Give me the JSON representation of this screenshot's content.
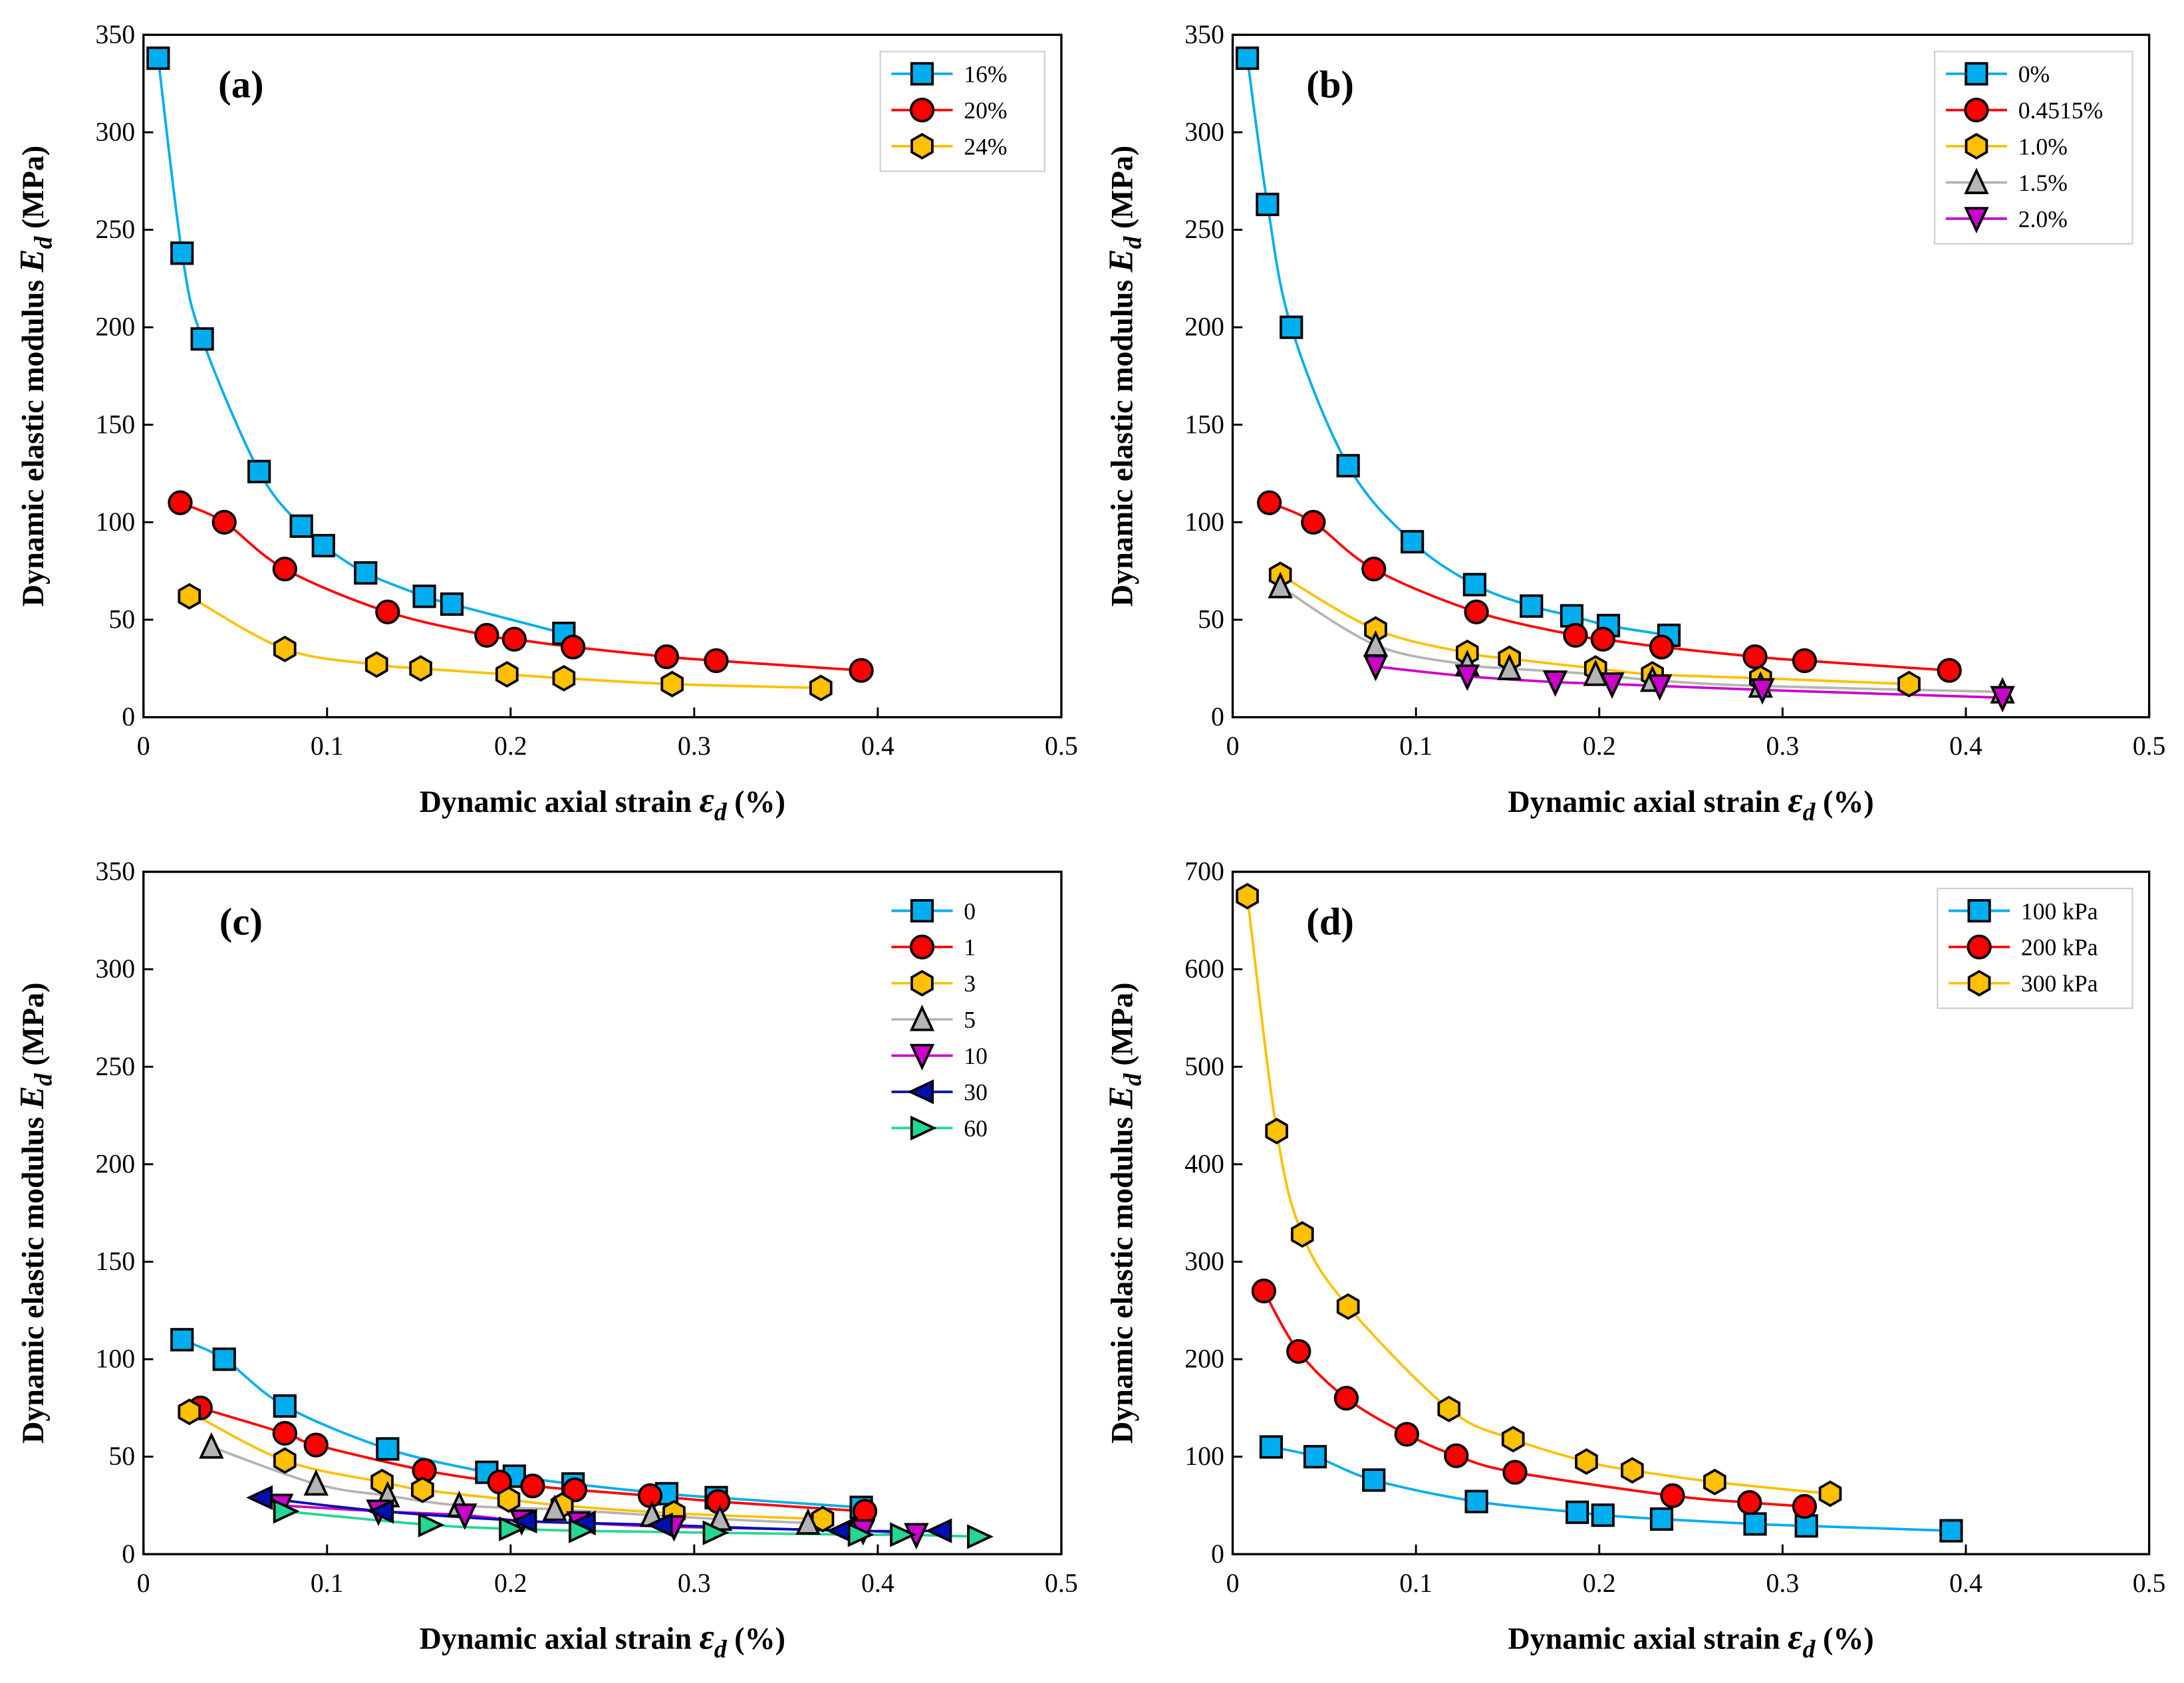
{
  "colors": {
    "blue": "#00AEEF",
    "red": "#FF0000",
    "gold": "#FFC000",
    "gray": "#B4B4B4",
    "magenta": "#CC00CC",
    "navy": "#0010B0",
    "green": "#22D892"
  },
  "chart_data": [
    {
      "type": "scatter",
      "panel_label": "(a)",
      "xlabel": "Dynamic axial strain",
      "xlabel_sym": "ε",
      "xlabel_sub": "d",
      "xlabel_unit": "(%)",
      "ylabel": "Dynamic elastic modulus",
      "ylabel_sym": "E",
      "ylabel_sub": "d",
      "ylabel_unit": "(MPa)",
      "xlim": [
        0,
        0.5
      ],
      "ylim": [
        0,
        350
      ],
      "xticks": [
        0,
        0.1,
        0.2,
        0.3,
        0.4,
        0.5
      ],
      "xtick_labels": [
        "0",
        "0.1",
        "0.2",
        "0.3",
        "0.4",
        "0.5"
      ],
      "yticks": [
        0,
        50,
        100,
        150,
        200,
        250,
        300,
        350
      ],
      "ytick_labels": [
        "0",
        "50",
        "100",
        "150",
        "200",
        "250",
        "300",
        "350"
      ],
      "legend": "top-right",
      "legend_frame": true,
      "series": [
        {
          "name": "16%",
          "marker": "square",
          "color": "blue",
          "x": [
            0.008,
            0.021,
            0.032,
            0.063,
            0.086,
            0.098,
            0.121,
            0.153,
            0.168,
            0.229
          ],
          "y": [
            338,
            238,
            194,
            126,
            98,
            88,
            74,
            62,
            58,
            43
          ]
        },
        {
          "name": "20%",
          "marker": "circle",
          "color": "red",
          "x": [
            0.02,
            0.044,
            0.077,
            0.133,
            0.187,
            0.202,
            0.234,
            0.285,
            0.312,
            0.391
          ],
          "y": [
            110,
            100,
            76,
            54,
            42,
            40,
            36,
            31,
            29,
            24
          ]
        },
        {
          "name": "24%",
          "marker": "hexagon",
          "color": "gold",
          "x": [
            0.025,
            0.077,
            0.127,
            0.151,
            0.198,
            0.229,
            0.288,
            0.369
          ],
          "y": [
            62,
            35,
            27,
            25,
            22,
            20,
            17,
            15
          ]
        }
      ]
    },
    {
      "type": "scatter",
      "panel_label": "(b)",
      "xlabel": "Dynamic axial strain",
      "xlabel_sym": "ε",
      "xlabel_sub": "d",
      "xlabel_unit": "(%)",
      "ylabel": "Dynamic elastic modulus",
      "ylabel_sym": "E",
      "ylabel_sub": "d",
      "ylabel_unit": "(MPa)",
      "xlim": [
        0,
        0.5
      ],
      "ylim": [
        0,
        350
      ],
      "xticks": [
        0,
        0.1,
        0.2,
        0.3,
        0.4,
        0.5
      ],
      "xtick_labels": [
        "0",
        "0.1",
        "0.2",
        "0.3",
        "0.4",
        "0.5"
      ],
      "yticks": [
        0,
        50,
        100,
        150,
        200,
        250,
        300,
        350
      ],
      "ytick_labels": [
        "0",
        "50",
        "100",
        "150",
        "200",
        "250",
        "300",
        "350"
      ],
      "legend": "top-right",
      "legend_frame": true,
      "series": [
        {
          "name": "0%",
          "marker": "square",
          "color": "blue",
          "x": [
            0.008,
            0.019,
            0.032,
            0.063,
            0.098,
            0.132,
            0.163,
            0.185,
            0.205,
            0.238
          ],
          "y": [
            338,
            263,
            200,
            129,
            90,
            68,
            57,
            52,
            47,
            42
          ]
        },
        {
          "name": "0.4515%",
          "marker": "circle",
          "color": "red",
          "x": [
            0.02,
            0.044,
            0.077,
            0.133,
            0.187,
            0.202,
            0.234,
            0.285,
            0.312,
            0.391
          ],
          "y": [
            110,
            100,
            76,
            54,
            42,
            40,
            36,
            31,
            29,
            24
          ]
        },
        {
          "name": "1.0%",
          "marker": "hexagon",
          "color": "gold",
          "x": [
            0.026,
            0.078,
            0.128,
            0.151,
            0.198,
            0.229,
            0.288,
            0.369
          ],
          "y": [
            73,
            45,
            33,
            30,
            25,
            22,
            20,
            17
          ]
        },
        {
          "name": "1.5%",
          "marker": "triangle-up",
          "color": "gray",
          "x": [
            0.026,
            0.078,
            0.128,
            0.151,
            0.198,
            0.229,
            0.288,
            0.42
          ],
          "y": [
            67,
            37,
            27,
            25,
            22,
            19,
            16,
            13
          ]
        },
        {
          "name": "2.0%",
          "marker": "triangle-down",
          "color": "magenta",
          "x": [
            0.078,
            0.128,
            0.176,
            0.207,
            0.233,
            0.289,
            0.42
          ],
          "y": [
            26,
            21,
            18,
            17,
            16,
            14,
            10
          ]
        }
      ]
    },
    {
      "type": "scatter",
      "panel_label": "(c)",
      "xlabel": "Dynamic axial strain",
      "xlabel_sym": "ε",
      "xlabel_sub": "d",
      "xlabel_unit": "(%)",
      "ylabel": "Dynamic elastic modulus",
      "ylabel_sym": "E",
      "ylabel_sub": "d",
      "ylabel_unit": "(MPa)",
      "xlim": [
        0,
        0.5
      ],
      "ylim": [
        0,
        350
      ],
      "xticks": [
        0,
        0.1,
        0.2,
        0.3,
        0.4,
        0.5
      ],
      "xtick_labels": [
        "0",
        "0.1",
        "0.2",
        "0.3",
        "0.4",
        "0.5"
      ],
      "yticks": [
        0,
        50,
        100,
        150,
        200,
        250,
        300,
        350
      ],
      "ytick_labels": [
        "0",
        "50",
        "100",
        "150",
        "200",
        "250",
        "300",
        "350"
      ],
      "legend": "top-right",
      "legend_frame": false,
      "series": [
        {
          "name": "0",
          "marker": "square",
          "color": "blue",
          "x": [
            0.021,
            0.044,
            0.077,
            0.133,
            0.187,
            0.202,
            0.234,
            0.285,
            0.312,
            0.391
          ],
          "y": [
            110,
            100,
            76,
            54,
            42,
            40,
            36,
            31,
            29,
            24
          ]
        },
        {
          "name": "1",
          "marker": "circle",
          "color": "red",
          "x": [
            0.031,
            0.077,
            0.094,
            0.153,
            0.194,
            0.212,
            0.235,
            0.276,
            0.313,
            0.393
          ],
          "y": [
            75,
            62,
            56,
            43,
            37,
            35,
            33,
            30,
            27,
            22
          ]
        },
        {
          "name": "3",
          "marker": "hexagon",
          "color": "gold",
          "x": [
            0.025,
            0.077,
            0.13,
            0.152,
            0.199,
            0.228,
            0.289,
            0.37
          ],
          "y": [
            73,
            48,
            37,
            33,
            28,
            25,
            21,
            18
          ]
        },
        {
          "name": "5",
          "marker": "triangle-up",
          "color": "gray",
          "x": [
            0.037,
            0.094,
            0.133,
            0.172,
            0.224,
            0.277,
            0.314,
            0.362
          ],
          "y": [
            55,
            36,
            30,
            25,
            23,
            20,
            18,
            16
          ]
        },
        {
          "name": "10",
          "marker": "triangle-down",
          "color": "magenta",
          "x": [
            0.075,
            0.128,
            0.175,
            0.206,
            0.237,
            0.289,
            0.392,
            0.421
          ],
          "y": [
            25,
            22,
            20,
            17,
            16,
            14,
            12,
            10
          ]
        },
        {
          "name": "30",
          "marker": "triangle-left",
          "color": "navy",
          "x": [
            0.064,
            0.13,
            0.208,
            0.24,
            0.282,
            0.38,
            0.434
          ],
          "y": [
            29,
            22,
            17,
            16,
            15,
            12,
            12
          ]
        },
        {
          "name": "60",
          "marker": "triangle-right",
          "color": "green",
          "x": [
            0.077,
            0.156,
            0.2,
            0.238,
            0.311,
            0.39,
            0.413,
            0.455
          ],
          "y": [
            22,
            15,
            13,
            12,
            11,
            10,
            10,
            9
          ]
        }
      ]
    },
    {
      "type": "scatter",
      "panel_label": "(d)",
      "xlabel": "Dynamic axial strain",
      "xlabel_sym": "ε",
      "xlabel_sub": "d",
      "xlabel_unit": "(%)",
      "ylabel": "Dynamic elastic modulus",
      "ylabel_sym": "E",
      "ylabel_sub": "d",
      "ylabel_unit": "(MPa)",
      "xlim": [
        0,
        0.5
      ],
      "ylim": [
        0,
        700
      ],
      "xticks": [
        0,
        0.1,
        0.2,
        0.3,
        0.4,
        0.5
      ],
      "xtick_labels": [
        "0",
        "0.1",
        "0.2",
        "0.3",
        "0.4",
        "0.5"
      ],
      "yticks": [
        0,
        100,
        200,
        300,
        400,
        500,
        600,
        700
      ],
      "ytick_labels": [
        "0",
        "100",
        "200",
        "300",
        "400",
        "500",
        "600",
        "700"
      ],
      "legend": "top-right",
      "legend_frame": true,
      "series": [
        {
          "name": "100 kPa",
          "marker": "square",
          "color": "blue",
          "x": [
            0.021,
            0.045,
            0.077,
            0.133,
            0.188,
            0.202,
            0.234,
            0.285,
            0.313,
            0.392
          ],
          "y": [
            110,
            100,
            76,
            54,
            43,
            40,
            36,
            31,
            29,
            24
          ]
        },
        {
          "name": "200 kPa",
          "marker": "circle",
          "color": "red",
          "x": [
            0.017,
            0.036,
            0.062,
            0.095,
            0.122,
            0.154,
            0.24,
            0.282,
            0.312
          ],
          "y": [
            270,
            208,
            160,
            123,
            101,
            84,
            60,
            53,
            49
          ]
        },
        {
          "name": "300 kPa",
          "marker": "hexagon",
          "color": "gold",
          "x": [
            0.008,
            0.024,
            0.038,
            0.063,
            0.118,
            0.153,
            0.193,
            0.218,
            0.263,
            0.326
          ],
          "y": [
            675,
            434,
            328,
            254,
            149,
            118,
            95,
            86,
            74,
            62
          ]
        }
      ]
    }
  ]
}
